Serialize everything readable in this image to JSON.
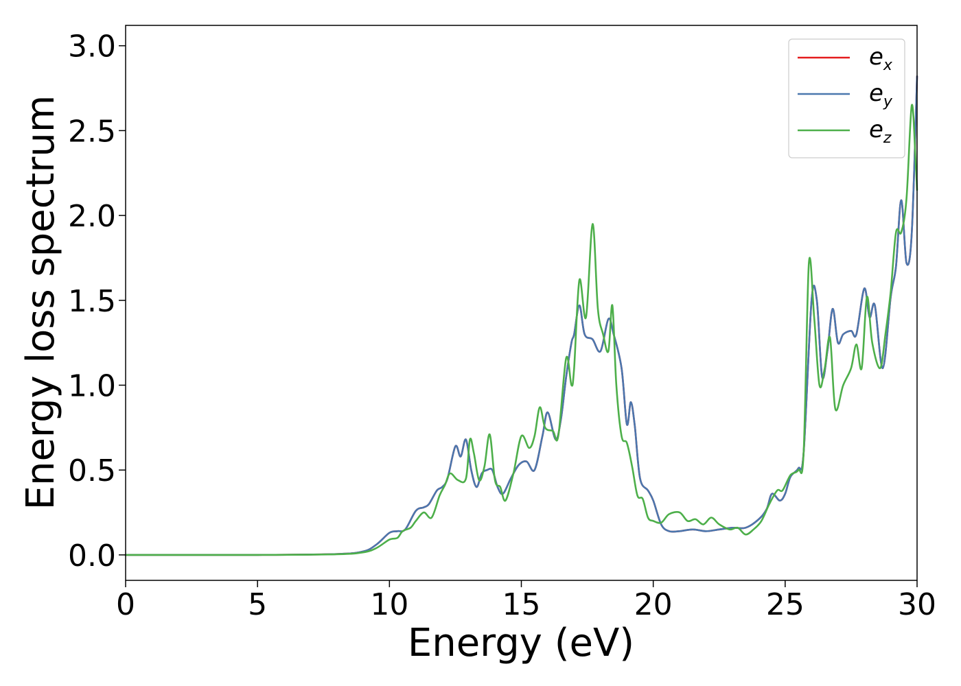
{
  "chart_data": {
    "type": "line",
    "title": "",
    "xlabel": "Energy (eV)",
    "ylabel": "Energy loss spectrum",
    "xlim": [
      0,
      30
    ],
    "ylim": [
      -0.15,
      3.12
    ],
    "xticks": [
      0,
      5,
      10,
      15,
      20,
      25,
      30
    ],
    "xtick_labels": [
      "0",
      "5",
      "10",
      "15",
      "20",
      "25",
      "30"
    ],
    "yticks": [
      0.0,
      0.5,
      1.0,
      1.5,
      2.0,
      2.5,
      3.0
    ],
    "ytick_labels": [
      "0.0",
      "0.5",
      "1.0",
      "1.5",
      "2.0",
      "2.5",
      "3.0"
    ],
    "grid": false,
    "legend_position": "top-right",
    "series": [
      {
        "name": "e_x",
        "legend_base": "e",
        "legend_sub": "x",
        "color": "#e41a1c",
        "x": [
          0,
          5,
          8,
          9,
          9.5,
          10,
          10.3,
          10.6,
          11,
          11.3,
          11.5,
          11.8,
          12,
          12.2,
          12.5,
          12.7,
          12.9,
          13.1,
          13.3,
          13.5,
          13.7,
          13.9,
          14.1,
          14.3,
          14.6,
          14.9,
          15.2,
          15.5,
          15.8,
          16.0,
          16.3,
          16.5,
          16.7,
          16.9,
          17.0,
          17.2,
          17.4,
          17.7,
          18.0,
          18.3,
          18.5,
          18.8,
          19.0,
          19.15,
          19.3,
          19.5,
          19.8,
          20.0,
          20.3,
          20.6,
          21.0,
          21.5,
          22.0,
          22.5,
          23.0,
          23.5,
          24.0,
          24.3,
          24.5,
          24.8,
          25.0,
          25.2,
          25.5,
          25.7,
          26.0,
          26.2,
          26.4,
          26.6,
          26.8,
          27.0,
          27.2,
          27.5,
          27.7,
          28.0,
          28.2,
          28.4,
          28.7,
          29.0,
          29.2,
          29.4,
          29.6,
          29.8,
          30.0
        ],
        "y": [
          0,
          0,
          0.005,
          0.02,
          0.06,
          0.13,
          0.14,
          0.15,
          0.26,
          0.28,
          0.3,
          0.38,
          0.4,
          0.45,
          0.64,
          0.58,
          0.68,
          0.5,
          0.4,
          0.48,
          0.5,
          0.5,
          0.4,
          0.36,
          0.45,
          0.53,
          0.55,
          0.5,
          0.7,
          0.84,
          0.68,
          0.8,
          1.05,
          1.25,
          1.3,
          1.47,
          1.3,
          1.27,
          1.2,
          1.39,
          1.3,
          1.1,
          0.77,
          0.9,
          0.76,
          0.45,
          0.38,
          0.32,
          0.18,
          0.14,
          0.14,
          0.15,
          0.14,
          0.15,
          0.16,
          0.16,
          0.21,
          0.27,
          0.36,
          0.32,
          0.36,
          0.46,
          0.51,
          0.6,
          1.5,
          1.5,
          1.05,
          1.2,
          1.45,
          1.25,
          1.3,
          1.32,
          1.3,
          1.57,
          1.4,
          1.47,
          1.1,
          1.52,
          1.7,
          2.09,
          1.72,
          1.9,
          2.82
        ]
      },
      {
        "name": "e_y",
        "legend_base": "e",
        "legend_sub": "y",
        "color": "#4a77ae",
        "x": [
          0,
          5,
          8,
          9,
          9.5,
          10,
          10.3,
          10.6,
          11,
          11.3,
          11.5,
          11.8,
          12,
          12.2,
          12.5,
          12.7,
          12.9,
          13.1,
          13.3,
          13.5,
          13.7,
          13.9,
          14.1,
          14.3,
          14.6,
          14.9,
          15.2,
          15.5,
          15.8,
          16.0,
          16.3,
          16.5,
          16.7,
          16.9,
          17.0,
          17.2,
          17.4,
          17.7,
          18.0,
          18.3,
          18.5,
          18.8,
          19.0,
          19.15,
          19.3,
          19.5,
          19.8,
          20.0,
          20.3,
          20.6,
          21.0,
          21.5,
          22.0,
          22.5,
          23.0,
          23.5,
          24.0,
          24.3,
          24.5,
          24.8,
          25.0,
          25.2,
          25.5,
          25.7,
          26.0,
          26.2,
          26.4,
          26.6,
          26.8,
          27.0,
          27.2,
          27.5,
          27.7,
          28.0,
          28.2,
          28.4,
          28.7,
          29.0,
          29.2,
          29.4,
          29.6,
          29.8,
          30.0
        ],
        "y": [
          0,
          0,
          0.005,
          0.02,
          0.06,
          0.13,
          0.14,
          0.15,
          0.26,
          0.28,
          0.3,
          0.38,
          0.4,
          0.45,
          0.64,
          0.58,
          0.68,
          0.5,
          0.4,
          0.48,
          0.5,
          0.5,
          0.4,
          0.36,
          0.45,
          0.53,
          0.55,
          0.5,
          0.7,
          0.84,
          0.68,
          0.8,
          1.05,
          1.25,
          1.3,
          1.47,
          1.3,
          1.27,
          1.2,
          1.39,
          1.3,
          1.1,
          0.77,
          0.9,
          0.76,
          0.45,
          0.38,
          0.32,
          0.18,
          0.14,
          0.14,
          0.15,
          0.14,
          0.15,
          0.16,
          0.16,
          0.21,
          0.27,
          0.36,
          0.32,
          0.36,
          0.46,
          0.51,
          0.6,
          1.5,
          1.5,
          1.05,
          1.2,
          1.45,
          1.25,
          1.3,
          1.32,
          1.3,
          1.57,
          1.4,
          1.47,
          1.1,
          1.52,
          1.7,
          2.09,
          1.72,
          1.9,
          2.82
        ]
      },
      {
        "name": "e_z",
        "legend_base": "e",
        "legend_sub": "z",
        "color": "#4daf4a",
        "x": [
          0,
          5,
          8,
          9,
          9.5,
          10,
          10.3,
          10.5,
          10.8,
          11,
          11.3,
          11.6,
          11.9,
          12.1,
          12.3,
          12.6,
          12.9,
          13.05,
          13.2,
          13.4,
          13.6,
          13.8,
          14.0,
          14.2,
          14.4,
          14.7,
          15.0,
          15.3,
          15.5,
          15.7,
          15.9,
          16.2,
          16.4,
          16.7,
          16.9,
          17.0,
          17.2,
          17.45,
          17.7,
          17.9,
          18.1,
          18.3,
          18.45,
          18.6,
          18.8,
          19.0,
          19.2,
          19.4,
          19.6,
          19.8,
          20.0,
          20.3,
          20.6,
          21.0,
          21.3,
          21.6,
          21.9,
          22.2,
          22.5,
          22.9,
          23.2,
          23.5,
          23.8,
          24.1,
          24.4,
          24.7,
          24.9,
          25.2,
          25.5,
          25.7,
          25.9,
          26.1,
          26.3,
          26.5,
          26.7,
          26.9,
          27.2,
          27.5,
          27.7,
          27.9,
          28.1,
          28.3,
          28.6,
          28.8,
          29.0,
          29.2,
          29.4,
          29.6,
          29.8,
          29.95,
          30.0
        ],
        "y": [
          0,
          0,
          0.004,
          0.015,
          0.04,
          0.09,
          0.1,
          0.14,
          0.16,
          0.2,
          0.25,
          0.22,
          0.35,
          0.41,
          0.48,
          0.44,
          0.45,
          0.68,
          0.6,
          0.44,
          0.52,
          0.71,
          0.44,
          0.4,
          0.32,
          0.48,
          0.7,
          0.63,
          0.7,
          0.87,
          0.75,
          0.73,
          0.7,
          1.16,
          1.0,
          1.1,
          1.62,
          1.4,
          1.95,
          1.45,
          1.3,
          1.2,
          1.47,
          1.0,
          0.7,
          0.66,
          0.52,
          0.35,
          0.33,
          0.22,
          0.2,
          0.19,
          0.24,
          0.25,
          0.2,
          0.21,
          0.18,
          0.22,
          0.18,
          0.15,
          0.16,
          0.12,
          0.15,
          0.2,
          0.3,
          0.38,
          0.38,
          0.47,
          0.5,
          0.6,
          1.72,
          1.4,
          1.0,
          1.1,
          1.28,
          0.86,
          1.0,
          1.1,
          1.24,
          1.1,
          1.52,
          1.25,
          1.1,
          1.3,
          1.55,
          1.9,
          1.9,
          2.1,
          2.65,
          2.3,
          2.15
        ]
      }
    ]
  }
}
